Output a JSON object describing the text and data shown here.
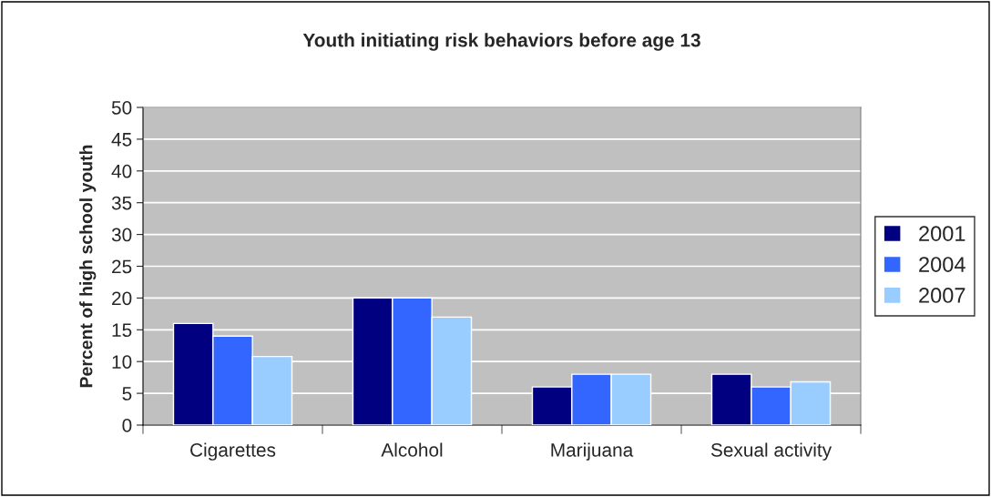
{
  "chart_data": {
    "type": "bar",
    "title": "Youth initiating risk behaviors before age 13",
    "ylabel": "Percent of high school youth",
    "categories": [
      "Cigarettes",
      "Alcohol",
      "Marijuana",
      "Sexual activity"
    ],
    "series": [
      {
        "name": "2001",
        "color": "#000080",
        "values": [
          16,
          20,
          6,
          8
        ]
      },
      {
        "name": "2004",
        "color": "#3366ff",
        "values": [
          14,
          20,
          8,
          6
        ]
      },
      {
        "name": "2007",
        "color": "#99ccff",
        "values": [
          10.8,
          17,
          8,
          6.8
        ]
      }
    ],
    "ylim": [
      0,
      50
    ],
    "yticks": [
      0,
      5,
      10,
      15,
      20,
      25,
      30,
      35,
      40,
      45,
      50
    ],
    "grid": "y",
    "legend": "right"
  }
}
